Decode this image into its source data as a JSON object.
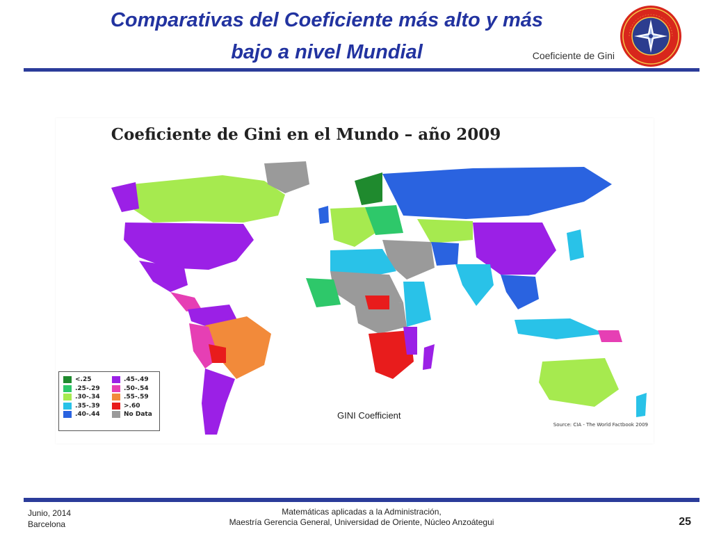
{
  "slide": {
    "title_line1": "Comparativas del Coeficiente más alto y más",
    "title_line2": "bajo a nivel Mundial",
    "corner_label": "Coeficiente de Gini",
    "seal_text_top": "UNIVERSIDAD DE ORIENTE",
    "seal_text_bottom": "VENEZUELA"
  },
  "map": {
    "title": "Coeficiente de Gini en el Mundo – año 2009",
    "legend_caption": "GINI Coefficient",
    "source": "Source: CIA - The World Factbook 2009",
    "legend": [
      {
        "label": "<.25",
        "color": "#1f8a2e"
      },
      {
        "label": ".25-.29",
        "color": "#2ec86a"
      },
      {
        "label": ".30-.34",
        "color": "#a6ea4f"
      },
      {
        "label": ".35-.39",
        "color": "#29c2e8"
      },
      {
        "label": ".40-.44",
        "color": "#2a63e0"
      },
      {
        "label": ".45-.49",
        "color": "#9b20e6"
      },
      {
        "label": ".50-.54",
        "color": "#e63fb4"
      },
      {
        "label": ".55-.59",
        "color": "#f28a3a"
      },
      {
        "label": ">.60",
        "color": "#e81c1c"
      },
      {
        "label": "No Data",
        "color": "#9a9a9a"
      }
    ]
  },
  "footer": {
    "date": "Junio, 2014",
    "city": "Barcelona",
    "course": "Matemáticas aplicadas a la Administración,",
    "program": "Maestría Gerencia General, Universidad de Oriente, Núcleo Anzoátegui",
    "page": "25"
  }
}
